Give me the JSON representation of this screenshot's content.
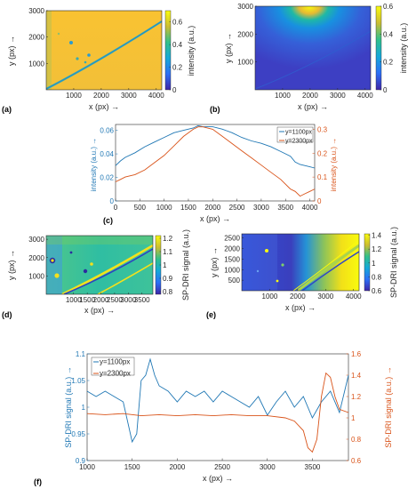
{
  "panels": {
    "a": {
      "label": "(a)",
      "xlabel": "x (px) →",
      "ylabel": "y (px) →",
      "cbar_label": "intensity (a.u.)"
    },
    "b": {
      "label": "(b)",
      "xlabel": "x (px) →",
      "ylabel": "y (px) →",
      "cbar_label": "intensity (a.u.)"
    },
    "c": {
      "label": "(c)",
      "xlabel": "x (px) →",
      "ylabel_left": "intensity (a.u.) →",
      "ylabel_right": "intensity (a.u.) →"
    },
    "d": {
      "label": "(d)",
      "xlabel": "x (px) →",
      "ylabel": "y (px) →",
      "cbar_label": "SP-DRI signal (a.u.)"
    },
    "e": {
      "label": "(e)",
      "xlabel": "x (px) →",
      "ylabel": "y (px) →",
      "cbar_label": "SP-DRI signal (a.u.)"
    },
    "f": {
      "label": "(f)",
      "xlabel": "x (px) →",
      "ylabel_left": "SP-DRI signal (a.u.) →",
      "ylabel_right": "SP-DRI signal (a.u.) →"
    }
  },
  "colors": {
    "series1": "#1f77b4",
    "series2": "#d95319",
    "parula_dark": "#3e26a8",
    "parula_blue": "#2c87f5",
    "parula_teal": "#26b89c",
    "parula_yellow": "#f9fb0e",
    "parula_orange": "#fbbe3a"
  },
  "chart_data": [
    {
      "id": "a",
      "type": "heatmap",
      "xlim": [
        0,
        4200
      ],
      "ylim": [
        0,
        3000
      ],
      "xticks": [
        1000,
        2000,
        3000,
        4000
      ],
      "yticks": [
        1000,
        2000,
        3000
      ],
      "colorbar": {
        "range": [
          0,
          0.7
        ],
        "ticks": [
          0,
          0.2,
          0.4,
          0.6
        ]
      }
    },
    {
      "id": "b",
      "type": "heatmap",
      "xlim": [
        0,
        4200
      ],
      "ylim": [
        0,
        3000
      ],
      "xticks": [
        1000,
        2000,
        3000,
        4000
      ],
      "yticks": [
        1000,
        2000,
        3000
      ],
      "colorbar": {
        "range": [
          0,
          0.6
        ],
        "ticks": [
          0,
          0.2,
          0.4,
          0.6
        ]
      }
    },
    {
      "id": "c",
      "type": "line",
      "xlim": [
        0,
        4100
      ],
      "ylim_left": [
        0,
        0.065
      ],
      "ylim_right": [
        0,
        0.32
      ],
      "xticks": [
        0,
        500,
        1000,
        1500,
        2000,
        2500,
        3000,
        3500,
        4000
      ],
      "yticks_left": [
        0,
        0.02,
        0.04,
        0.06
      ],
      "yticks_right": [
        0,
        0.1,
        0.2,
        0.3
      ],
      "legend": "top-right",
      "series": [
        {
          "name": "y=1100px",
          "axis": "left",
          "x": [
            0,
            100,
            200,
            400,
            600,
            800,
            1000,
            1200,
            1400,
            1600,
            1700,
            1800,
            2000,
            2200,
            2400,
            2600,
            2800,
            3000,
            3200,
            3400,
            3600,
            3700,
            3800,
            4000,
            4100
          ],
          "y": [
            0.03,
            0.034,
            0.037,
            0.041,
            0.046,
            0.05,
            0.054,
            0.058,
            0.06,
            0.062,
            0.064,
            0.063,
            0.063,
            0.061,
            0.058,
            0.054,
            0.051,
            0.049,
            0.046,
            0.042,
            0.038,
            0.033,
            0.031,
            0.029,
            0.028
          ]
        },
        {
          "name": "y=2300px",
          "axis": "right",
          "x": [
            0,
            100,
            200,
            400,
            600,
            800,
            1000,
            1200,
            1400,
            1600,
            1700,
            1800,
            2000,
            2200,
            2400,
            2600,
            2800,
            3000,
            3200,
            3400,
            3600,
            3700,
            3800,
            3900,
            4000,
            4100
          ],
          "y": [
            0.08,
            0.09,
            0.1,
            0.11,
            0.13,
            0.16,
            0.19,
            0.23,
            0.27,
            0.3,
            0.31,
            0.31,
            0.3,
            0.27,
            0.24,
            0.21,
            0.18,
            0.15,
            0.12,
            0.09,
            0.05,
            0.04,
            0.02,
            0.03,
            0.04,
            0.05
          ]
        }
      ]
    },
    {
      "id": "d",
      "type": "heatmap",
      "xlim": [
        0,
        3900
      ],
      "ylim": [
        0,
        3200
      ],
      "xticks": [
        1000,
        1500,
        2000,
        2500,
        3000,
        3500
      ],
      "yticks": [
        1000,
        2000,
        3000
      ],
      "colorbar": {
        "range": [
          0.78,
          1.22
        ],
        "ticks": [
          0.8,
          0.9,
          1,
          1.1,
          1.2
        ]
      }
    },
    {
      "id": "e",
      "type": "heatmap",
      "xlim": [
        0,
        4200
      ],
      "ylim": [
        0,
        2700
      ],
      "xticks": [
        1000,
        2000,
        3000,
        4000
      ],
      "yticks": [
        500,
        1000,
        1500,
        2000,
        2500
      ],
      "colorbar": {
        "range": [
          0.6,
          1.42
        ],
        "ticks": [
          0.6,
          0.8,
          1,
          1.2,
          1.4
        ]
      }
    },
    {
      "id": "f",
      "type": "line",
      "xlim": [
        1000,
        3900
      ],
      "ylim_left": [
        0.9,
        1.1
      ],
      "ylim_right": [
        0.6,
        1.6
      ],
      "xticks": [
        1000,
        1500,
        2000,
        2500,
        3000,
        3500
      ],
      "yticks_left": [
        0.9,
        0.95,
        1,
        1.05,
        1.1
      ],
      "yticks_right": [
        0.6,
        0.8,
        1,
        1.2,
        1.4,
        1.6
      ],
      "legend": "top-left",
      "series": [
        {
          "name": "y=1100px",
          "axis": "left",
          "x": [
            1000,
            1100,
            1200,
            1300,
            1400,
            1500,
            1550,
            1600,
            1650,
            1700,
            1750,
            1800,
            1900,
            2000,
            2100,
            2200,
            2300,
            2400,
            2500,
            2600,
            2700,
            2800,
            2900,
            3000,
            3100,
            3200,
            3300,
            3400,
            3500,
            3600,
            3700,
            3800,
            3900
          ],
          "y": [
            1.03,
            1.02,
            1.03,
            1.02,
            1.01,
            0.935,
            0.95,
            1.05,
            1.06,
            1.09,
            1.06,
            1.04,
            1.03,
            1.01,
            1.03,
            1.02,
            1.03,
            1.01,
            1.03,
            1.02,
            1.01,
            1.0,
            1.02,
            0.985,
            1.01,
            1.03,
            1.0,
            1.02,
            0.98,
            1.01,
            1.03,
            0.99,
            1.06
          ]
        },
        {
          "name": "y=2300px",
          "axis": "right",
          "x": [
            1000,
            1200,
            1400,
            1600,
            1800,
            2000,
            2200,
            2400,
            2600,
            2800,
            3000,
            3200,
            3300,
            3400,
            3450,
            3500,
            3550,
            3600,
            3650,
            3700,
            3750,
            3800,
            3900
          ],
          "y": [
            1.04,
            1.03,
            1.04,
            1.02,
            1.03,
            1.02,
            1.03,
            1.02,
            1.03,
            1.02,
            1.02,
            1.0,
            0.97,
            0.88,
            0.72,
            0.68,
            0.8,
            1.2,
            1.42,
            1.38,
            1.2,
            1.08,
            1.05
          ]
        }
      ]
    }
  ]
}
